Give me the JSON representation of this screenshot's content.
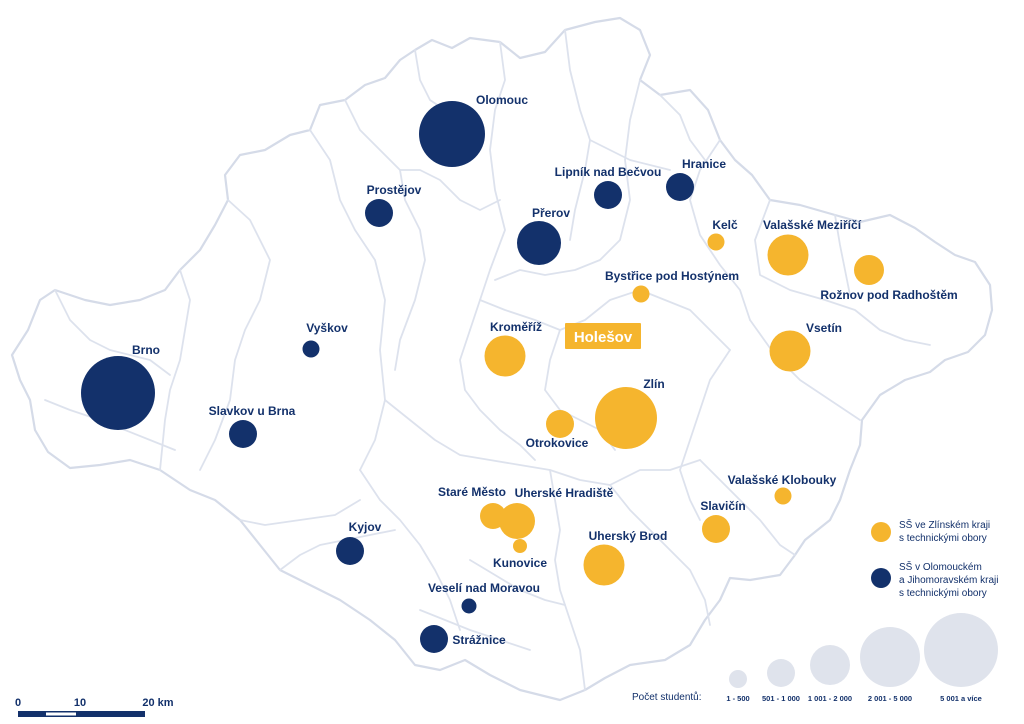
{
  "colors": {
    "zlin_schools": "#f5b52e",
    "other_schools": "#13316b",
    "highlight_bg": "#f5b52e",
    "highlight_text": "#ffffff",
    "legend_circle": "#dfe3ec",
    "district_stroke": "#d5dbe8",
    "label_text": "#13316b"
  },
  "highlight": {
    "label": "Holešov"
  },
  "cities": [
    {
      "id": "olomouc",
      "label": "Olomouc",
      "group": "other",
      "size_class": 5
    },
    {
      "id": "lipnik",
      "label": "Lipník nad Bečvou",
      "group": "other",
      "size_class": 2
    },
    {
      "id": "hranice",
      "label": "Hranice",
      "group": "other",
      "size_class": 2
    },
    {
      "id": "prostejov",
      "label": "Prostějov",
      "group": "other",
      "size_class": 2
    },
    {
      "id": "prerov",
      "label": "Přerov",
      "group": "other",
      "size_class": 4
    },
    {
      "id": "kelc",
      "label": "Kelč",
      "group": "zlin",
      "size_class": 1
    },
    {
      "id": "valmez",
      "label": "Valašské Meziříčí",
      "group": "zlin",
      "size_class": 3
    },
    {
      "id": "roznov",
      "label": "Rožnov pod Radhoštěm",
      "group": "zlin",
      "size_class": 2
    },
    {
      "id": "bystrice",
      "label": "Bystřice pod Hostýnem",
      "group": "zlin",
      "size_class": 1
    },
    {
      "id": "vyskov",
      "label": "Vyškov",
      "group": "other",
      "size_class": 1
    },
    {
      "id": "kromeriz",
      "label": "Kroměříž",
      "group": "zlin",
      "size_class": 3
    },
    {
      "id": "vsetin",
      "label": "Vsetín",
      "group": "zlin",
      "size_class": 3
    },
    {
      "id": "brno",
      "label": "Brno",
      "group": "other",
      "size_class": 5
    },
    {
      "id": "zlin",
      "label": "Zlín",
      "group": "zlin",
      "size_class": 5
    },
    {
      "id": "slavkov",
      "label": "Slavkov u Brna",
      "group": "other",
      "size_class": 2
    },
    {
      "id": "otrokovice",
      "label": "Otrokovice",
      "group": "zlin",
      "size_class": 2
    },
    {
      "id": "valklobouky",
      "label": "Valašské Klobouky",
      "group": "zlin",
      "size_class": 1
    },
    {
      "id": "staremesto",
      "label": "Staré Město",
      "group": "zlin",
      "size_class": 2
    },
    {
      "id": "uhhradiste",
      "label": "Uherské Hradiště",
      "group": "zlin",
      "size_class": 3
    },
    {
      "id": "slavicin",
      "label": "Slavičín",
      "group": "zlin",
      "size_class": 2
    },
    {
      "id": "kyjov",
      "label": "Kyjov",
      "group": "other",
      "size_class": 2
    },
    {
      "id": "kunovice",
      "label": "Kunovice",
      "group": "zlin",
      "size_class": 1
    },
    {
      "id": "uhbrod",
      "label": "Uherský Brod",
      "group": "zlin",
      "size_class": 3
    },
    {
      "id": "veseli",
      "label": "Veselí nad Moravou",
      "group": "other",
      "size_class": 1
    },
    {
      "id": "straznice",
      "label": "Strážnice",
      "group": "other",
      "size_class": 2
    }
  ],
  "legend": {
    "zlin_line1": "SŠ ve Zlínském kraji",
    "zlin_line2": "s technickými obory",
    "other_line1": "SŠ v Olomouckém",
    "other_line2": "a Jihomoravském kraji",
    "other_line3": "s technickými obory",
    "size_title": "Počet studentů:",
    "size_classes": [
      "1 - 500",
      "501 - 1 000",
      "1 001 - 2 000",
      "2 001 - 5 000",
      "5 001 a více"
    ]
  },
  "scale": {
    "ticks": [
      "0",
      "10",
      "20 km"
    ]
  }
}
